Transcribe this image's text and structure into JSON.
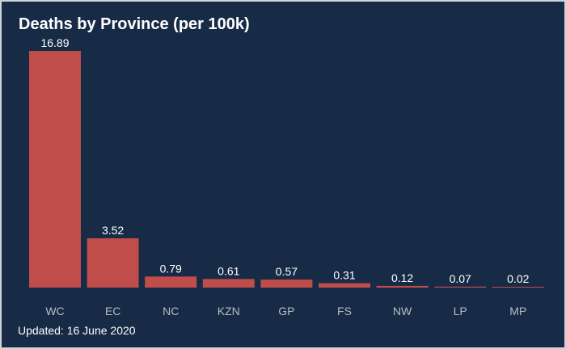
{
  "title": "Deaths by Province (per 100k)",
  "footer": "Updated: 16 June 2020",
  "colors": {
    "background": "#172b46",
    "bar": "#bf4d4a",
    "value_label": "#ffffff",
    "category_label": "#b7bcc4",
    "border": "#cfd4db"
  },
  "chart_data": {
    "type": "bar",
    "title": "Deaths by Province (per 100k)",
    "xlabel": "",
    "ylabel": "",
    "categories": [
      "WC",
      "EC",
      "NC",
      "KZN",
      "GP",
      "FS",
      "NW",
      "LP",
      "MP"
    ],
    "values": [
      16.89,
      3.52,
      0.79,
      0.61,
      0.57,
      0.31,
      0.12,
      0.07,
      0.02
    ],
    "value_labels": [
      "16.89",
      "3.52",
      "0.79",
      "0.61",
      "0.57",
      "0.31",
      "0.12",
      "0.07",
      "0.02"
    ],
    "ylim": [
      0,
      16.89
    ],
    "grid": false,
    "legend": "none"
  }
}
